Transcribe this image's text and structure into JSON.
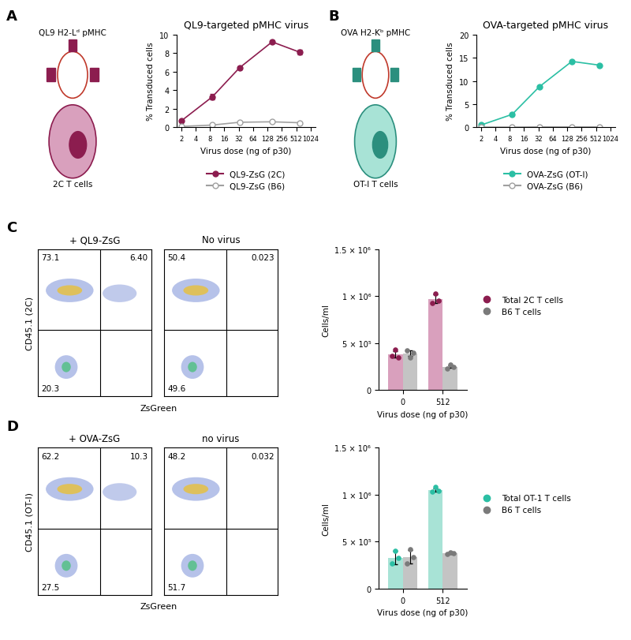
{
  "panel_labels": [
    "A",
    "B",
    "C",
    "D"
  ],
  "diagrams": [
    {
      "label": "QL9 H2-Lᵈ pMHC",
      "cell_label": "2C T cells",
      "color": "#8c1d4f",
      "cell_color": "#d9a0bd"
    },
    {
      "label": "OVA H2-Kᵇ pMHC",
      "cell_label": "OT-I T cells",
      "color": "#2b8f7e",
      "cell_color": "#a8e3d6"
    }
  ],
  "chart_data": [
    {
      "type": "line",
      "title": "QL9-targeted pMHC virus",
      "xlabel": "Virus dose (ng of p30)",
      "ylabel": "% Transduced cells",
      "log": "x",
      "xlim": [
        1.6,
        1300
      ],
      "xticks": [
        2,
        4,
        8,
        16,
        32,
        64,
        128,
        256,
        512,
        1024
      ],
      "ylim": [
        0,
        10
      ],
      "yticks": [
        0,
        2,
        4,
        6,
        8,
        10
      ],
      "legend": "below",
      "series": [
        {
          "name": "QL9-ZsG (2C)",
          "color": "#8c1d4f",
          "marker": "filled",
          "x": [
            2,
            9,
            33,
            160,
            600
          ],
          "values": [
            0.7,
            3.3,
            6.4,
            9.2,
            8.1
          ],
          "errors": [
            0.05,
            0.3,
            0.15,
            0.15,
            0.25
          ]
        },
        {
          "name": "QL9-ZsG (B6)",
          "color": "#a0a0a0",
          "marker": "open",
          "x": [
            2,
            9,
            33,
            160,
            600
          ],
          "values": [
            0.1,
            0.25,
            0.55,
            0.6,
            0.5
          ],
          "errors": [
            0.02,
            0.03,
            0.05,
            0.05,
            0.05
          ]
        }
      ]
    },
    {
      "type": "line",
      "title": "OVA-targeted pMHC virus",
      "xlabel": "Virus dose (ng of p30)",
      "ylabel": "% Transduced cells",
      "log": "x",
      "xlim": [
        1.6,
        1300
      ],
      "xticks": [
        2,
        4,
        8,
        16,
        32,
        64,
        128,
        256,
        512,
        1024
      ],
      "ylim": [
        0,
        20
      ],
      "yticks": [
        0,
        5,
        10,
        15,
        20
      ],
      "legend": "below",
      "series": [
        {
          "name": "OVA-ZsG (OT-I)",
          "color": "#2bbfa4",
          "marker": "filled",
          "x": [
            2,
            9,
            33,
            160,
            600
          ],
          "values": [
            0.5,
            2.8,
            8.7,
            14.2,
            13.4
          ],
          "errors": [
            0.05,
            0.2,
            0.1,
            0.1,
            0.1
          ]
        },
        {
          "name": "OVA-ZsG (B6)",
          "color": "#a0a0a0",
          "marker": "open",
          "x": [
            2,
            9,
            33,
            160,
            600
          ],
          "values": [
            0.05,
            0.05,
            0.1,
            0.1,
            0.1
          ],
          "errors": [
            0.01,
            0.01,
            0.01,
            0.01,
            0.01
          ]
        }
      ]
    },
    {
      "type": "flow",
      "title": "+ QL9-ZsG",
      "ylabel": "CD45.1 (2C)",
      "xlabel": "ZsGreen",
      "tick_labels": false,
      "values": [
        73.1,
        6.4,
        20.3
      ],
      "value_labels": [
        "73.1",
        "6.40",
        "20.3"
      ]
    },
    {
      "type": "flow",
      "title": "No virus",
      "tick_labels": false,
      "values": [
        50.4,
        0.023,
        49.6
      ],
      "value_labels": [
        "50.4",
        "0.023",
        "49.6"
      ]
    },
    {
      "type": "bar",
      "xlabel": "Virus dose (ng of p30)",
      "ylabel": "Cells/ml",
      "categories": [
        "0",
        "512"
      ],
      "ylim": [
        0,
        1500000
      ],
      "yticks": [
        0,
        {
          "value": 500000,
          "label": "5 × 10⁵"
        },
        {
          "value": 1000000,
          "label": "1 × 10⁶"
        },
        {
          "value": 1500000,
          "label": "1.5 × 10⁶"
        }
      ],
      "legend": "right",
      "series": [
        {
          "name": "Total 2C T cells",
          "color": "#d9a0bd",
          "point_color": "#8c1d4f",
          "values": [
            380000,
            970000
          ],
          "errors": [
            30000,
            45000
          ],
          "points": [
            [
              360000,
              430000,
              350000
            ],
            [
              930000,
              1030000,
              950000
            ]
          ]
        },
        {
          "name": "B6 T cells",
          "color": "#c4c4c4",
          "point_color": "#7a7a7a",
          "values": [
            390000,
            250000
          ],
          "errors": [
            30000,
            15000
          ],
          "points": [
            [
              420000,
              350000,
              400000
            ],
            [
              230000,
              270000,
              250000
            ]
          ]
        }
      ]
    },
    {
      "type": "flow",
      "title": "+ OVA-ZsG",
      "ylabel": "CD45.1 (OT-I)",
      "xlabel": "ZsGreen",
      "tick_labels": false,
      "values": [
        62.2,
        10.3,
        27.5
      ],
      "value_labels": [
        "62.2",
        "10.3",
        "27.5"
      ]
    },
    {
      "type": "flow",
      "title": "no virus",
      "tick_labels": false,
      "values": [
        48.2,
        0.032,
        51.7
      ],
      "value_labels": [
        "48.2",
        "0.032",
        "51.7"
      ]
    },
    {
      "type": "bar",
      "xlabel": "Virus dose (ng of p30)",
      "ylabel": "Cells/ml",
      "categories": [
        "0",
        "512"
      ],
      "ylim": [
        0,
        1500000
      ],
      "yticks": [
        0,
        {
          "value": 500000,
          "label": "5 × 10⁵"
        },
        {
          "value": 1000000,
          "label": "1 × 10⁶"
        },
        {
          "value": 1500000,
          "label": "1.5 × 10⁶"
        }
      ],
      "legend": "right",
      "series": [
        {
          "name": "Total OT-1 T cells",
          "color": "#a8e3d6",
          "point_color": "#2bbfa4",
          "values": [
            330000,
            1050000
          ],
          "errors": [
            70000,
            20000
          ],
          "points": [
            [
              270000,
              400000,
              330000
            ],
            [
              1030000,
              1080000,
              1040000
            ]
          ]
        },
        {
          "name": "B6 T cells",
          "color": "#c4c4c4",
          "point_color": "#7a7a7a",
          "values": [
            340000,
            380000
          ],
          "errors": [
            70000,
            10000
          ],
          "points": [
            [
              270000,
              420000,
              340000
            ],
            [
              370000,
              390000,
              380000
            ]
          ]
        }
      ]
    }
  ]
}
